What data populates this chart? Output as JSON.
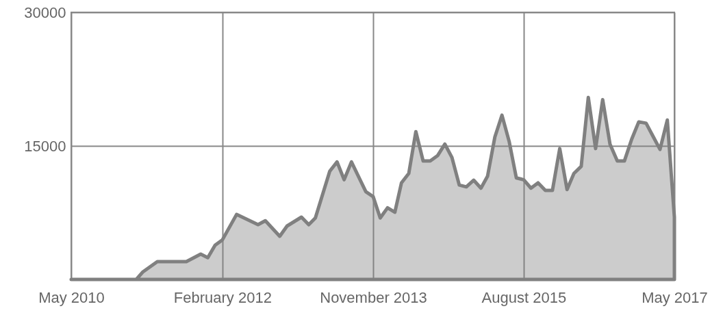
{
  "chart_data": {
    "type": "area",
    "x": [
      "2010-05",
      "2011-02",
      "2011-03",
      "2011-05",
      "2011-09",
      "2011-11",
      "2011-12",
      "2012-01",
      "2012-02",
      "2012-04",
      "2012-07",
      "2012-08",
      "2012-10",
      "2012-11",
      "2013-01",
      "2013-02",
      "2013-03",
      "2013-05",
      "2013-06",
      "2013-07",
      "2013-08",
      "2013-10",
      "2013-11",
      "2013-12",
      "2014-01",
      "2014-02",
      "2014-03",
      "2014-04",
      "2014-05",
      "2014-06",
      "2014-07",
      "2014-08",
      "2014-09",
      "2014-10",
      "2014-11",
      "2014-12",
      "2015-01",
      "2015-02",
      "2015-03",
      "2015-04",
      "2015-05",
      "2015-06",
      "2015-07",
      "2015-08",
      "2015-09",
      "2015-10",
      "2015-11",
      "2015-12",
      "2016-01",
      "2016-02",
      "2016-03",
      "2016-04",
      "2016-05",
      "2016-06",
      "2016-07",
      "2016-08",
      "2016-09",
      "2016-10",
      "2016-11",
      "2016-12",
      "2017-01",
      "2017-02",
      "2017-03",
      "2017-04",
      "2017-05"
    ],
    "series": [
      {
        "color": "#808080",
        "values": [
          0,
          0,
          850,
          2000,
          2000,
          2850,
          2450,
          3850,
          4450,
          7300,
          6150,
          6600,
          4850,
          6000,
          7000,
          6150,
          6900,
          12150,
          13200,
          11200,
          13200,
          9850,
          9300,
          6900,
          8050,
          7550,
          10850,
          11900,
          16600,
          13300,
          13300,
          13900,
          15200,
          13700,
          10600,
          10400,
          11150,
          10250,
          11600,
          16000,
          18450,
          15450,
          11400,
          11200,
          10250,
          10850,
          10000,
          10000,
          14700,
          10100,
          11900,
          12700,
          20450,
          14700,
          20200,
          15200,
          13300,
          13300,
          15750,
          17700,
          17550,
          16000,
          14600,
          17900,
          7000
        ]
      }
    ],
    "xlim": [
      "2010-05",
      "2017-05"
    ],
    "xticks": [
      {
        "value": "2010-05",
        "label": "May 2010"
      },
      {
        "value": "2012-02",
        "label": "February 2012"
      },
      {
        "value": "2013-11",
        "label": "November 2013"
      },
      {
        "value": "2015-08",
        "label": "August 2015"
      },
      {
        "value": "2017-05",
        "label": "May 2017"
      }
    ],
    "ylim": [
      0,
      30000
    ],
    "yticks": [
      {
        "value": 0,
        "label": null
      },
      15000,
      30000
    ],
    "grid": true
  }
}
